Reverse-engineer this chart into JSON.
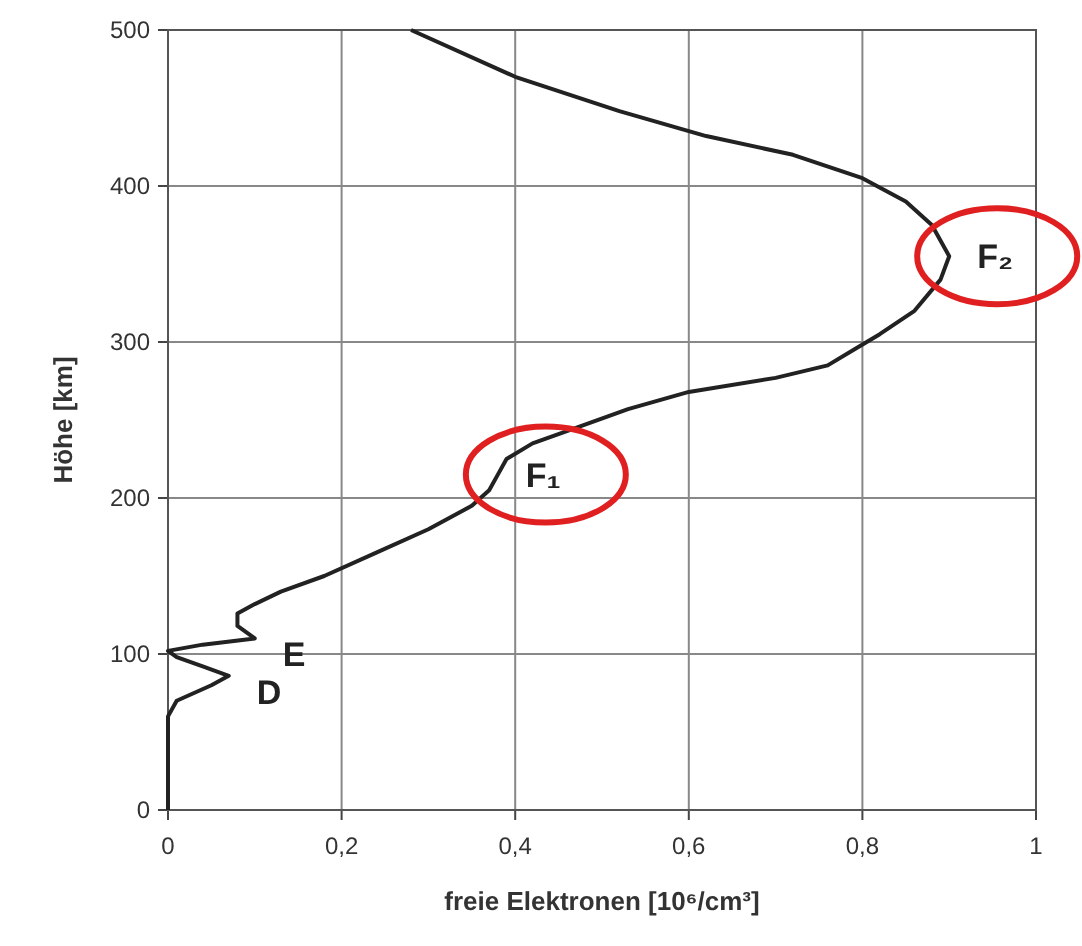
{
  "chart_data": {
    "type": "line",
    "xlabel": "freie Elektronen [10⁶/cm³]",
    "ylabel": "Höhe [km]",
    "xlim": [
      0,
      1
    ],
    "xticks": [
      {
        "value": 0,
        "label": "0"
      },
      {
        "value": 0.2,
        "label": "0,2"
      },
      {
        "value": 0.4,
        "label": "0,4"
      },
      {
        "value": 0.6,
        "label": "0,6"
      },
      {
        "value": 0.8,
        "label": "0,8"
      },
      {
        "value": 1,
        "label": "1"
      }
    ],
    "ylim": [
      0,
      500
    ],
    "yticks": [
      0,
      100,
      200,
      300,
      400,
      500
    ],
    "grid": true,
    "marker": "none",
    "line_style": "solid",
    "series": [
      {
        "color": "#222222",
        "x": [
          0,
          0,
          0.01,
          0.05,
          0.07,
          0.04,
          0.01,
          0,
          0.04,
          0.1,
          0.08,
          0.08,
          0.1,
          0.13,
          0.18,
          0.24,
          0.3,
          0.35,
          0.37,
          0.38,
          0.39,
          0.42,
          0.47,
          0.53,
          0.6,
          0.7,
          0.76,
          0.79,
          0.82,
          0.86,
          0.89,
          0.9,
          0.88,
          0.85,
          0.8,
          0.72,
          0.62,
          0.52,
          0.4,
          0.28
        ],
        "values": [
          0,
          60,
          70,
          80,
          86,
          92,
          98,
          102,
          106,
          110,
          118,
          126,
          132,
          140,
          150,
          165,
          180,
          195,
          205,
          215,
          225,
          235,
          245,
          257,
          268,
          277,
          285,
          295,
          305,
          320,
          340,
          355,
          375,
          390,
          405,
          420,
          432,
          448,
          470,
          500
        ]
      }
    ],
    "annotations": [
      {
        "text": "D",
        "x": 0.07,
        "y": 86
      },
      {
        "text": "E",
        "x": 0.1,
        "y": 110
      },
      {
        "text": "F₁",
        "x": 0.38,
        "y": 215
      },
      {
        "text": "F₂",
        "x": 0.9,
        "y": 355
      }
    ]
  }
}
